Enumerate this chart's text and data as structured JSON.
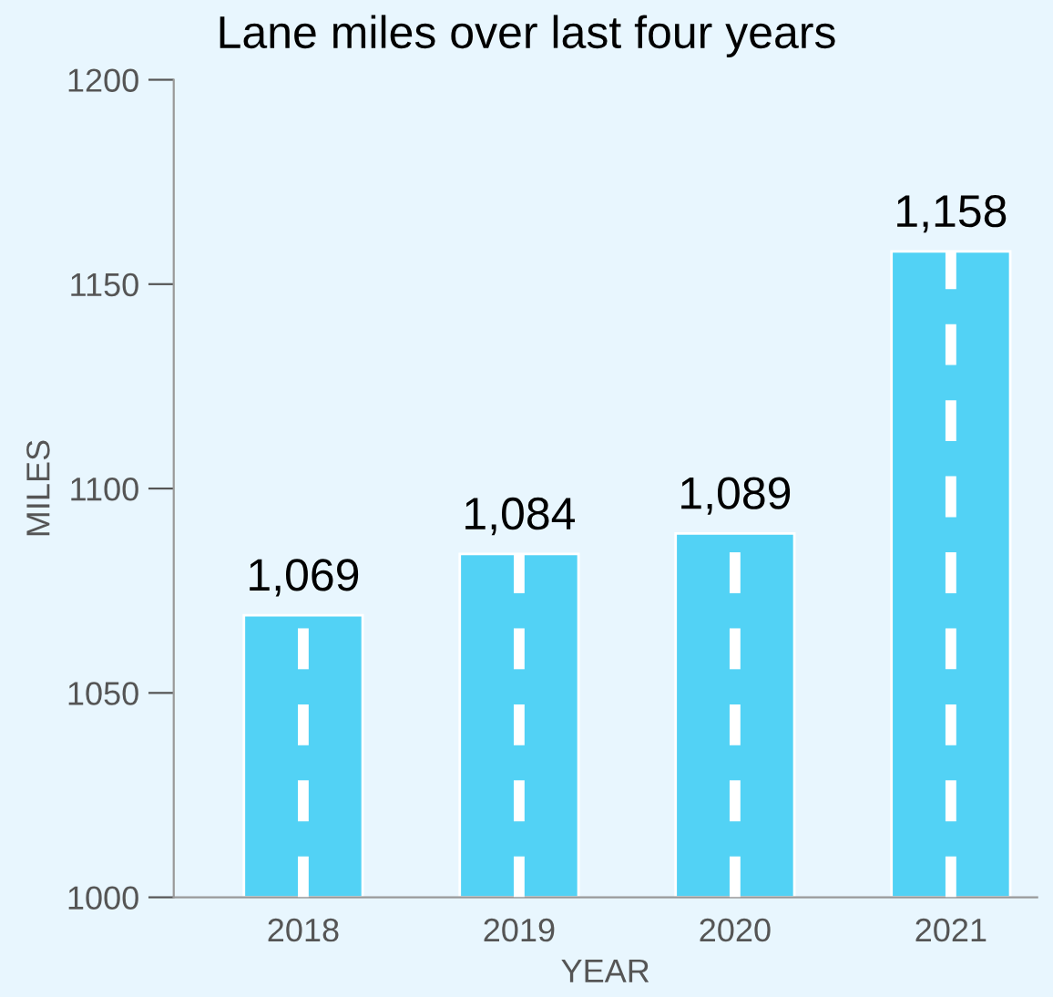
{
  "chart_data": {
    "type": "bar",
    "title": "Lane miles over last four years",
    "xlabel": "YEAR",
    "ylabel": "MILES",
    "categories": [
      "2018",
      "2019",
      "2020",
      "2021"
    ],
    "values": [
      1069,
      1084,
      1089,
      1158
    ],
    "value_labels": [
      "1,069",
      "1,084",
      "1,089",
      "1,158"
    ],
    "color": "#52d2f5",
    "ylim": [
      1000,
      1200
    ],
    "yticks": [
      1000,
      1050,
      1100,
      1150,
      1200
    ],
    "grid": false
  }
}
